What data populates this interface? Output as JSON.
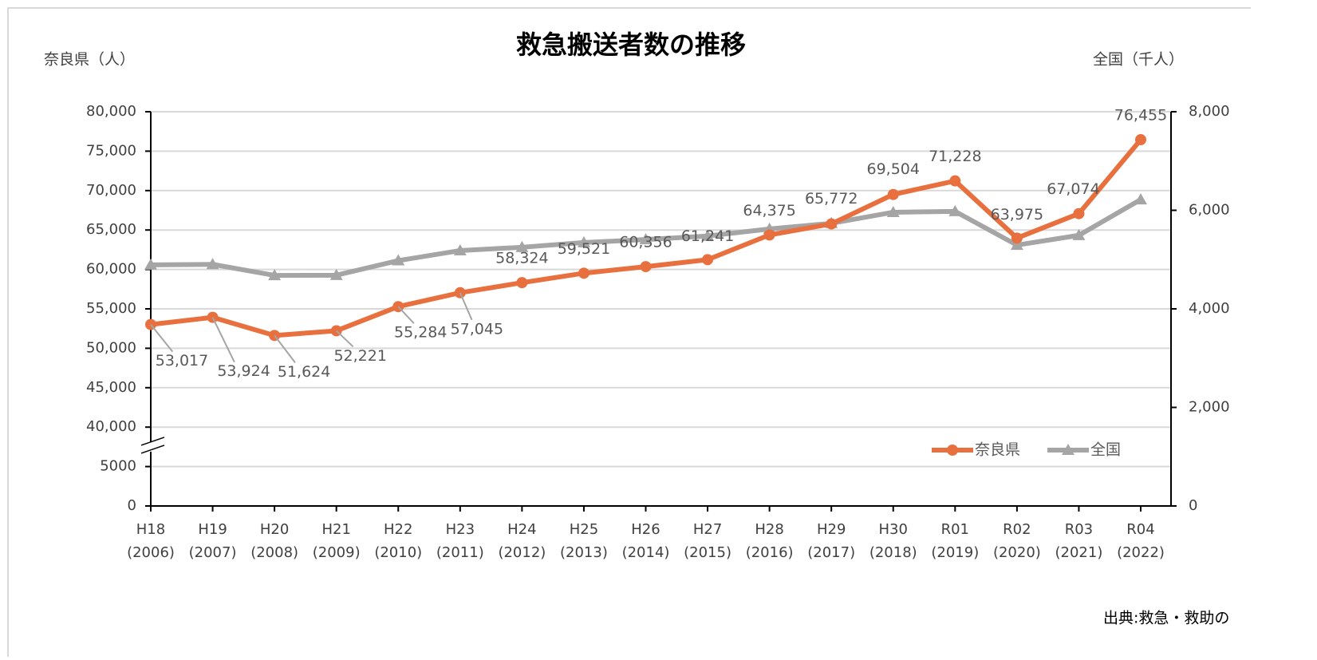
{
  "chart_data": {
    "type": "line",
    "title": "救急搬送者数の推移",
    "y_label": "奈良県（人）",
    "y2_label": "全国（千人）",
    "source": "出典:救急・救助の",
    "categories": [
      [
        "H18",
        "(2006)"
      ],
      [
        "H19",
        "(2007)"
      ],
      [
        "H20",
        "(2008)"
      ],
      [
        "H21",
        "(2009)"
      ],
      [
        "H22",
        "(2010)"
      ],
      [
        "H23",
        "(2011)"
      ],
      [
        "H24",
        "(2012)"
      ],
      [
        "H25",
        "(2013)"
      ],
      [
        "H26",
        "(2014)"
      ],
      [
        "H27",
        "(2015)"
      ],
      [
        "H28",
        "(2016)"
      ],
      [
        "H29",
        "(2017)"
      ],
      [
        "H30",
        "(2018)"
      ],
      [
        "R01",
        "(2019)"
      ],
      [
        "R02",
        "(2020)"
      ],
      [
        "R03",
        "(2021)"
      ],
      [
        "R04",
        "(2022)"
      ]
    ],
    "series": [
      {
        "name": "奈良県",
        "color": "#E8703F",
        "marker": "circle",
        "values": [
          53017,
          53924,
          51624,
          52221,
          55284,
          57045,
          58324,
          59521,
          60356,
          61241,
          64375,
          65772,
          69504,
          71228,
          63975,
          67074,
          76455
        ],
        "value_labels": [
          "53,017",
          "53,924",
          "51,624",
          "52,221",
          "55,284",
          "57,045",
          "58,324",
          "59,521",
          "60,356",
          "61,241",
          "64,375",
          "65,772",
          "69,504",
          "71,228",
          "63,975",
          "67,074",
          "76,455"
        ]
      },
      {
        "name": "全国",
        "color": "#A5A5A5",
        "marker": "triangle",
        "axis": "y2",
        "values": [
          4893,
          4903,
          4679,
          4683,
          4979,
          5183,
          5250,
          5346,
          5406,
          5478,
          5621,
          5736,
          5960,
          5978,
          5294,
          5492,
          6217
        ]
      }
    ],
    "ylim": [
      0,
      80000
    ],
    "yticks": [
      0,
      5000,
      {
        "value": 40000,
        "label": "40,000"
      },
      {
        "value": 45000,
        "label": "45,000"
      },
      {
        "value": 50000,
        "label": "50,000"
      },
      {
        "value": 55000,
        "label": "55,000"
      },
      {
        "value": 60000,
        "label": "60,000"
      },
      {
        "value": 65000,
        "label": "65,000"
      },
      {
        "value": 70000,
        "label": "70,000"
      },
      {
        "value": 75000,
        "label": "75,000"
      },
      {
        "value": 80000,
        "label": "80,000"
      }
    ],
    "y2lim": [
      0,
      8000
    ],
    "y2ticks": [
      0,
      {
        "value": 2000,
        "label": "2,000"
      },
      {
        "value": 4000,
        "label": "4,000"
      },
      {
        "value": 6000,
        "label": "6,000"
      },
      {
        "value": 8000,
        "label": "8,000"
      }
    ],
    "grid": true,
    "legend": "lower-right"
  }
}
